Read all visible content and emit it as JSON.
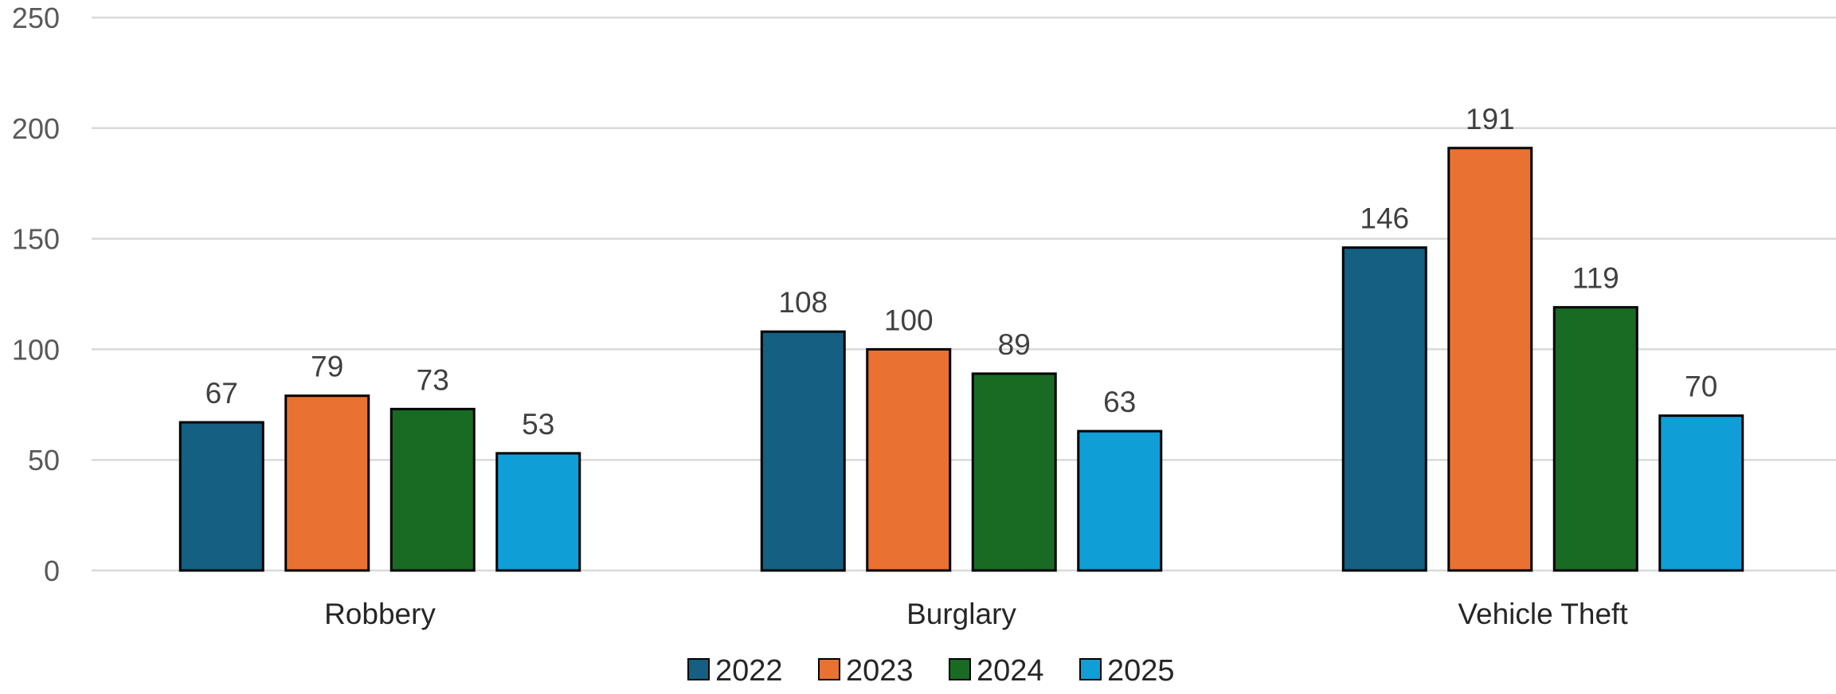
{
  "chart_data": {
    "type": "bar",
    "title": "",
    "xlabel": "",
    "ylabel": "",
    "categories": [
      "Robbery",
      "Burglary",
      "Vehicle Theft"
    ],
    "series": [
      {
        "name": "2022",
        "color": "#145f82",
        "values": [
          67,
          108,
          146
        ]
      },
      {
        "name": "2023",
        "color": "#e97132",
        "values": [
          79,
          100,
          191
        ]
      },
      {
        "name": "2024",
        "color": "#196b24",
        "values": [
          73,
          89,
          119
        ]
      },
      {
        "name": "2025",
        "color": "#0f9ed5",
        "values": [
          53,
          63,
          70
        ]
      }
    ],
    "ylim": [
      0,
      250
    ],
    "yticks": [
      0,
      50,
      100,
      150,
      200,
      250
    ],
    "grid": true,
    "legend": "bottom-center",
    "data_labels": true
  }
}
